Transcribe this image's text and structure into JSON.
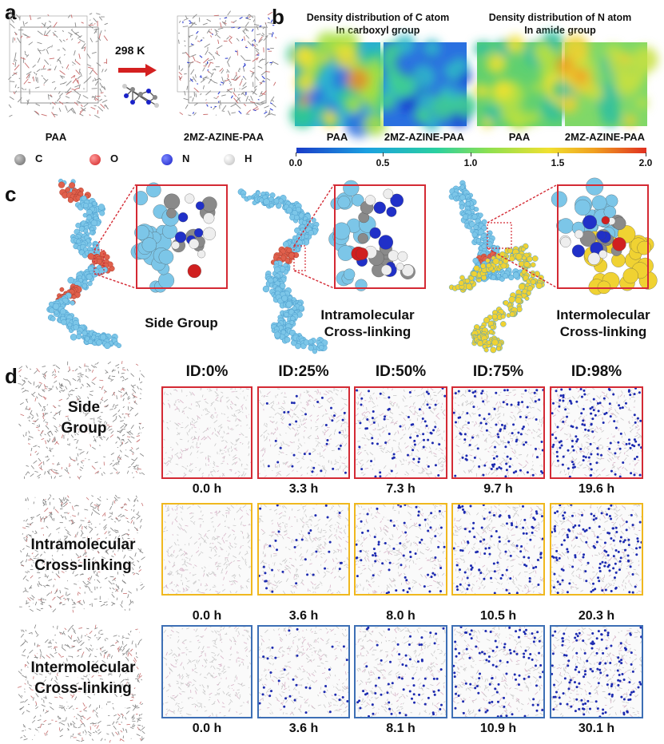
{
  "panels": {
    "a": "a",
    "b": "b",
    "c": "c",
    "d": "d"
  },
  "panel_a": {
    "temperature": "298 K",
    "left_label": "PAA",
    "right_label": "2MZ-AZINE-PAA",
    "legend": [
      {
        "symbol": "C",
        "color": "#808080"
      },
      {
        "symbol": "O",
        "color": "#e03030"
      },
      {
        "symbol": "N",
        "color": "#1a2ad0"
      },
      {
        "symbol": "H",
        "color": "#f2f2f2"
      }
    ]
  },
  "panel_b": {
    "title_left_1": "Density distribution of C atom",
    "title_left_2": "In carboxyl group",
    "title_right_1": "Density distribution of N atom",
    "title_right_2": "In amide group",
    "map_labels": [
      "PAA",
      "2MZ-AZINE-PAA",
      "PAA",
      "2MZ-AZINE-PAA"
    ],
    "colorbar_ticks": [
      "0.0",
      "0.5",
      "1.0",
      "1.5",
      "2.0"
    ]
  },
  "panel_c": {
    "captions": [
      {
        "line1": "Side Group",
        "line2": ""
      },
      {
        "line1": "Intramolecular",
        "line2": "Cross-linking"
      },
      {
        "line1": "Intermolecular",
        "line2": "Cross-linking"
      }
    ]
  },
  "panel_d": {
    "column_headers": [
      "ID:0%",
      "ID:25%",
      "ID:50%",
      "ID:75%",
      "ID:98%"
    ],
    "rows": [
      {
        "label_1": "Side",
        "label_2": "Group",
        "border": "#d42a34",
        "times": [
          "0.0 h",
          "3.3 h",
          "7.3 h",
          "9.7 h",
          "19.6 h"
        ]
      },
      {
        "label_1": "Intramolecular",
        "label_2": "Cross-linking",
        "border": "#f0b81e",
        "times": [
          "0.0 h",
          "3.6 h",
          "8.0 h",
          "10.5 h",
          "20.3 h"
        ]
      },
      {
        "label_1": "Intermolecular",
        "label_2": "Cross-linking",
        "border": "#3d6fb5",
        "times": [
          "0.0 h",
          "3.6 h",
          "8.1 h",
          "10.9 h",
          "30.1 h"
        ]
      }
    ],
    "dot_density": [
      0,
      0.25,
      0.5,
      0.75,
      0.98
    ]
  },
  "colors": {
    "cyan_molecule": "#7cc6e8",
    "red_group": "#e0604c",
    "yellow_molecule": "#f0d232",
    "highlight_box": "#d42a34"
  }
}
